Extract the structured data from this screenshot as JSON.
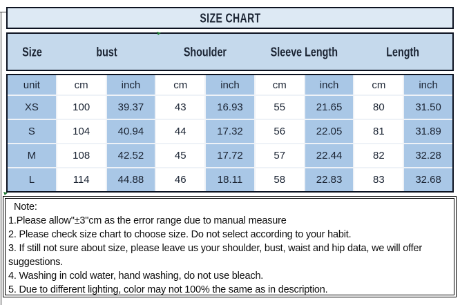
{
  "title": "SIZE CHART",
  "table": {
    "groups": [
      {
        "label": "Size"
      },
      {
        "label": "bust"
      },
      {
        "label": "Shoulder"
      },
      {
        "label": "Sleeve Length"
      },
      {
        "label": "Length"
      }
    ],
    "unit_row": [
      "unit",
      "cm",
      "inch",
      "cm",
      "inch",
      "cm",
      "inch",
      "cm",
      "inch"
    ],
    "rows": [
      [
        "XS",
        "100",
        "39.37",
        "43",
        "16.93",
        "55",
        "21.65",
        "80",
        "31.50"
      ],
      [
        "S",
        "104",
        "40.94",
        "44",
        "17.32",
        "56",
        "22.05",
        "81",
        "31.89"
      ],
      [
        "M",
        "108",
        "42.52",
        "45",
        "17.72",
        "57",
        "22.44",
        "82",
        "32.28"
      ],
      [
        "L",
        "114",
        "44.88",
        "46",
        "18.11",
        "58",
        "22.83",
        "83",
        "32.68"
      ]
    ]
  },
  "notes": {
    "heading": "Note:",
    "lines": [
      "1.Please allow\"±3\"cm as the error range due to manual measure",
      "2. Please check size chart to choose size. Do not select according to your habit.",
      "3. If still not sure about size, please leave us your shoulder, bust, waist and hip data, we will offer",
      "suggestions.",
      "4. Washing in cold water, hand washing, do not use bleach.",
      "5. Due to different lighting, color may not 100% the same as in description."
    ]
  },
  "colors": {
    "cell_blue": "#a9c7e6",
    "header_blue": "#c5d9ec",
    "title_blue": "#dde9f4",
    "border_dark": "#0c1220"
  }
}
